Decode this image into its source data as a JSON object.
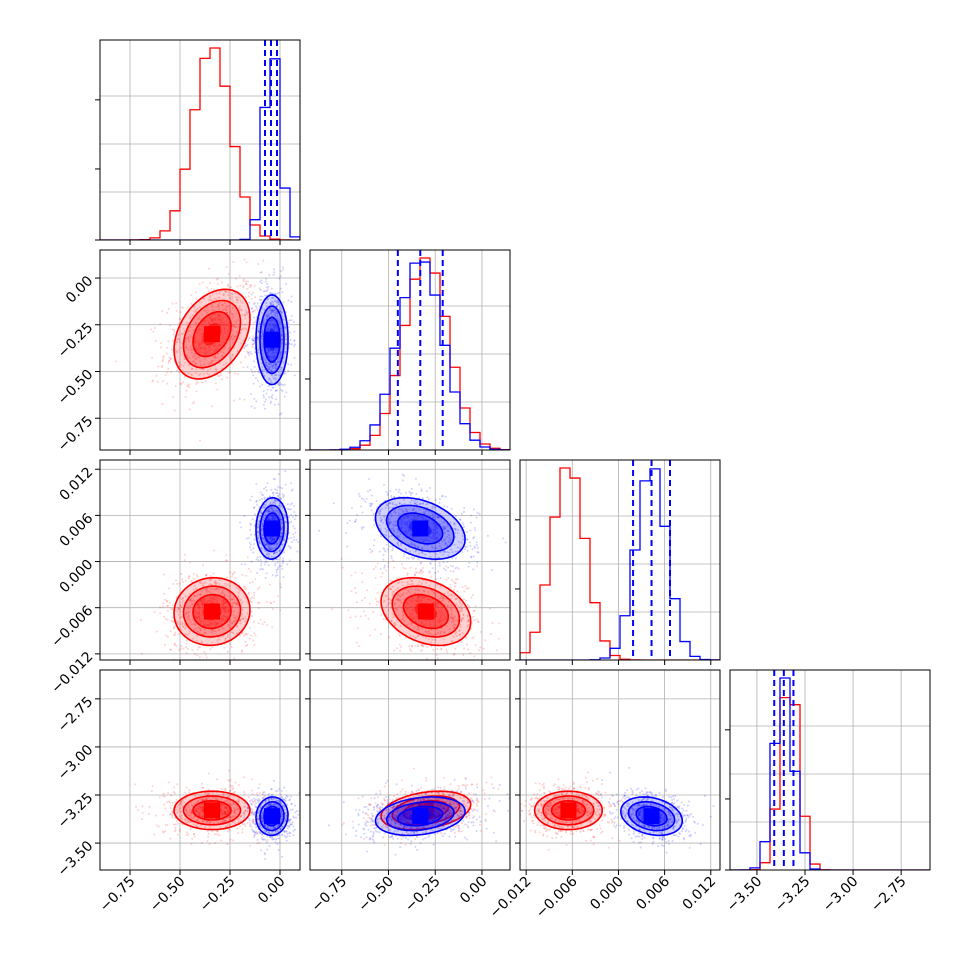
{
  "chart_data": {
    "type": "corner",
    "x_labels": [
      "",
      "",
      "",
      ""
    ],
    "variables": [
      {
        "range": [
          -0.9,
          0.1
        ],
        "ticks": [
          -0.75,
          -0.5,
          -0.25,
          0.0
        ],
        "tick_labels": [
          "−0.75",
          "−0.50",
          "−0.25",
          "0.00"
        ]
      },
      {
        "range": [
          -0.92,
          0.15
        ],
        "ticks": [
          -0.75,
          -0.5,
          -0.25,
          0.0
        ],
        "tick_labels": [
          "−0.75",
          "−0.50",
          "−0.25",
          "0.00"
        ]
      },
      {
        "range": [
          -0.0128,
          0.0132
        ],
        "ticks": [
          -0.012,
          -0.006,
          0.0,
          0.006,
          0.012
        ],
        "tick_labels": [
          "−0.012",
          "−0.006",
          "0.000",
          "0.006",
          "0.012"
        ]
      },
      {
        "range": [
          -3.64,
          -2.6
        ],
        "ticks": [
          -3.5,
          -3.25,
          -3.0,
          -2.75
        ],
        "tick_labels": [
          "−3.50",
          "−3.25",
          "−3.00",
          "−2.75"
        ]
      }
    ],
    "series": [
      {
        "color": "#ff0000",
        "mean": [
          -0.34,
          -0.3,
          -0.0065,
          -3.33
        ],
        "sd": [
          0.095,
          0.12,
          0.0022,
          0.05
        ],
        "rho": [
          [
            1,
            0.35,
            0.05,
            0.0
          ],
          [
            0.35,
            1,
            -0.3,
            0.3
          ],
          [
            0.05,
            -0.3,
            1,
            0.0
          ],
          [
            0.0,
            0.3,
            0.0,
            1
          ]
        ],
        "quantiles": null
      },
      {
        "color": "#0000ff",
        "mean": [
          -0.04,
          -0.33,
          0.0043,
          -3.36
        ],
        "sd": [
          0.04,
          0.12,
          0.002,
          0.05
        ],
        "rho": [
          [
            1,
            0.0,
            0.05,
            0.05
          ],
          [
            0.0,
            1,
            -0.35,
            0.25
          ],
          [
            0.05,
            -0.35,
            1,
            -0.25
          ],
          [
            0.05,
            0.25,
            -0.25,
            1
          ]
        ],
        "quantiles": [
          [
            -0.075,
            -0.045,
            -0.015
          ],
          [
            -0.45,
            -0.33,
            -0.21
          ],
          [
            0.0019,
            0.0043,
            0.0067
          ],
          [
            -3.41,
            -3.36,
            -3.31
          ]
        ]
      }
    ],
    "contour_levels": [
      0.5,
      1.0,
      1.5,
      2.0
    ],
    "grid": true
  }
}
